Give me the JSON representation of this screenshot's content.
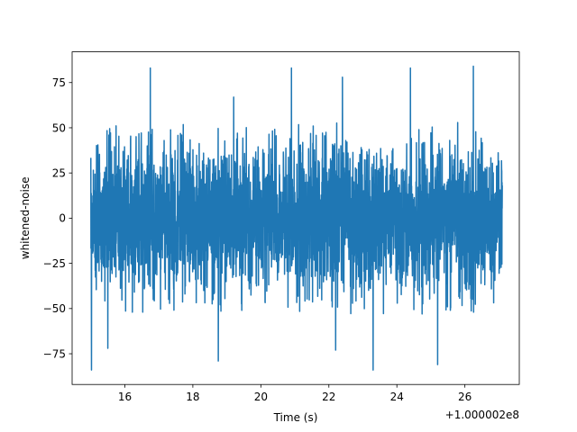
{
  "chart_data": {
    "type": "line",
    "title": "",
    "xlabel": "Time (s)",
    "ylabel": "whitened-noise",
    "x_offset_label": "+1.000002e8",
    "xlim": [
      14.45,
      27.6
    ],
    "ylim": [
      -92,
      92
    ],
    "x_ticks": [
      16,
      18,
      20,
      22,
      24,
      26
    ],
    "x_tick_labels": [
      "16",
      "18",
      "20",
      "22",
      "24",
      "26"
    ],
    "y_ticks": [
      75,
      50,
      25,
      0,
      -25,
      -50,
      -75
    ],
    "y_tick_labels": [
      "75",
      "50",
      "25",
      "0",
      "−25",
      "−50",
      "−75"
    ],
    "grid": false,
    "legend": "none",
    "line_color": "#1f77b4",
    "series": [
      {
        "x_start": 15.0,
        "x_end": 27.1,
        "sample_count": 3100,
        "typical_envelope": [
          -45,
          45
        ],
        "extremes": [
          {
            "x": 15.02,
            "y": -84
          },
          {
            "x": 16.75,
            "y": 83
          },
          {
            "x": 18.75,
            "y": -79
          },
          {
            "x": 20.9,
            "y": 83
          },
          {
            "x": 22.4,
            "y": 78
          },
          {
            "x": 23.3,
            "y": -84
          },
          {
            "x": 24.4,
            "y": 83
          },
          {
            "x": 25.2,
            "y": -81
          },
          {
            "x": 26.25,
            "y": 84
          },
          {
            "x": 22.2,
            "y": -73
          },
          {
            "x": 15.5,
            "y": -72
          },
          {
            "x": 19.2,
            "y": 67
          }
        ]
      }
    ]
  }
}
